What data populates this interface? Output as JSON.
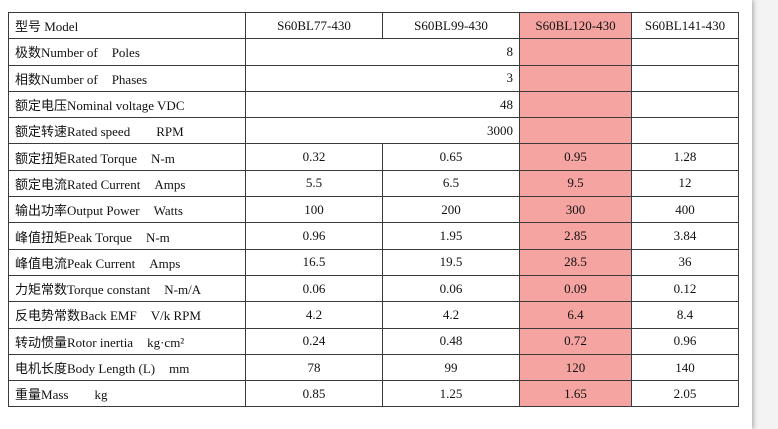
{
  "table": {
    "header": {
      "label": "型号 Model",
      "models": [
        "S60BL77-430",
        "S60BL99-430",
        "S60BL120-430",
        "S60BL141-430"
      ]
    },
    "shared_rows": [
      {
        "cn": "极数",
        "en": "Number of",
        "en2": "Poles",
        "value": "8"
      },
      {
        "cn": "相数",
        "en": "Number of",
        "en2": "Phases",
        "value": "3"
      },
      {
        "cn": "额定电压",
        "en": "Nominal voltage VDC",
        "en2": "",
        "value": "48"
      },
      {
        "cn": "额定转速",
        "en": "Rated speed",
        "en2": "RPM",
        "value": "3000"
      }
    ],
    "rows": [
      {
        "cn": "额定扭矩",
        "en": "Rated Torque",
        "unit": "N-m",
        "values": [
          "0.32",
          "0.65",
          "0.95",
          "1.28"
        ]
      },
      {
        "cn": "额定电流",
        "en": "Rated Current",
        "unit": "Amps",
        "values": [
          "5.5",
          "6.5",
          "9.5",
          "12"
        ]
      },
      {
        "cn": "输出功率",
        "en": "Output Power",
        "unit": "Watts",
        "values": [
          "100",
          "200",
          "300",
          "400"
        ]
      },
      {
        "cn": "峰值扭矩",
        "en": "Peak Torque",
        "unit": "N-m",
        "values": [
          "0.96",
          "1.95",
          "2.85",
          "3.84"
        ]
      },
      {
        "cn": "峰值电流",
        "en": "Peak Current",
        "unit": "Amps",
        "values": [
          "16.5",
          "19.5",
          "28.5",
          "36"
        ]
      },
      {
        "cn": "力矩常数",
        "en": "Torque constant",
        "unit": "N-m/A",
        "values": [
          "0.06",
          "0.06",
          "0.09",
          "0.12"
        ]
      },
      {
        "cn": "反电势常数",
        "en": "Back EMF",
        "unit": "V/k RPM",
        "values": [
          "4.2",
          "4.2",
          "6.4",
          "8.4"
        ]
      },
      {
        "cn": "转动惯量",
        "en": "Rotor inertia",
        "unit": "kg·cm²",
        "values": [
          "0.24",
          "0.48",
          "0.72",
          "0.96"
        ]
      },
      {
        "cn": "电机长度",
        "en": "Body Length (L)",
        "unit": "mm",
        "values": [
          "78",
          "99",
          "120",
          "140"
        ]
      },
      {
        "cn": "重量",
        "en": "Mass",
        "unit": "kg",
        "values": [
          "0.85",
          "1.25",
          "1.65",
          "2.05"
        ]
      }
    ],
    "highlight_color": "#f6a4a2",
    "highlight_column_index": 2
  }
}
